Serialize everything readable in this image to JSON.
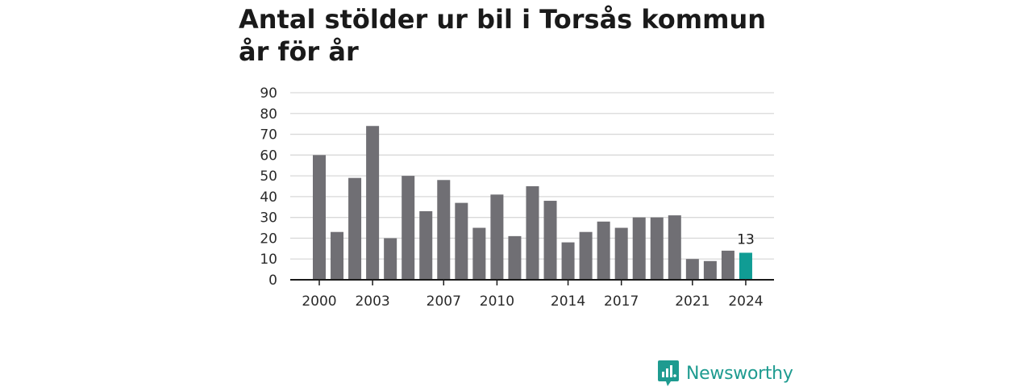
{
  "chart_data": {
    "type": "bar",
    "title": "Antal stölder ur bil i Torsås kommun år för år",
    "xlabel": "",
    "ylabel": "",
    "ylim": [
      0,
      90
    ],
    "yticks": [
      0,
      10,
      20,
      30,
      40,
      50,
      60,
      70,
      80,
      90
    ],
    "categories": [
      "2000",
      "2001",
      "2002",
      "2003",
      "2004",
      "2005",
      "2006",
      "2007",
      "2008",
      "2009",
      "2010",
      "2011",
      "2012",
      "2013",
      "2014",
      "2015",
      "2016",
      "2017",
      "2018",
      "2019",
      "2020",
      "2021",
      "2022",
      "2023",
      "2024"
    ],
    "x_tick_labels": [
      "2000",
      "2003",
      "2007",
      "2010",
      "2014",
      "2017",
      "2021",
      "2024"
    ],
    "values": [
      60,
      23,
      49,
      74,
      20,
      50,
      33,
      48,
      37,
      25,
      41,
      21,
      45,
      38,
      18,
      23,
      28,
      25,
      30,
      30,
      31,
      10,
      9,
      14,
      13
    ],
    "highlight": {
      "category": "2024",
      "label": "13"
    },
    "grid": true,
    "colors": {
      "bar": "#706f74",
      "highlight": "#109c94",
      "grid": "#d9d9d9",
      "axis": "#1a1a1a"
    }
  },
  "brand": {
    "name": "Newsworthy",
    "color": "#1e9b90",
    "icon": "newsworthy-logo-icon"
  }
}
